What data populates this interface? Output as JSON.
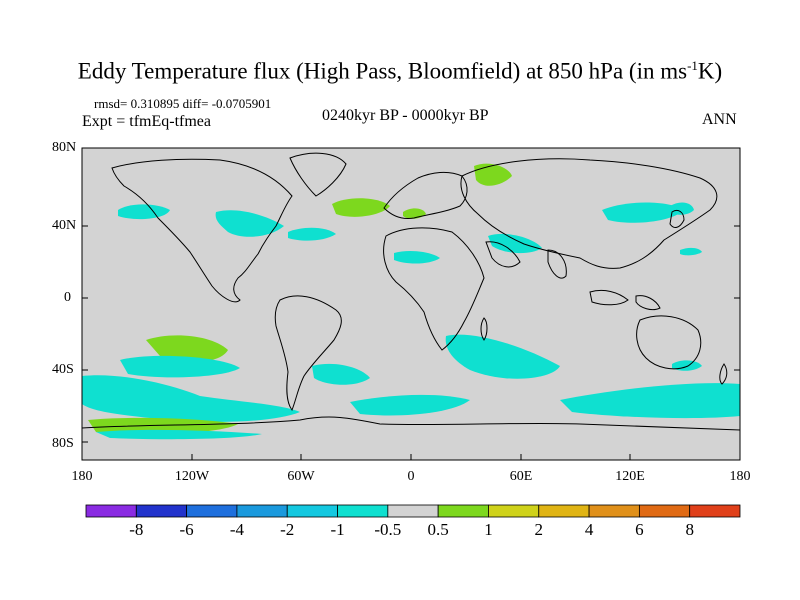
{
  "title": {
    "main": "Eddy Temperature flux (High Pass, Bloomfield) at 850 hPa (in ms",
    "sup": "-1",
    "end": "K)"
  },
  "stats_line": "rmsd= 0.310895 diff= -0.0705901",
  "experiment": "Expt = tfmEq-tfmea",
  "period": "0240kyr BP - 0000kyr BP",
  "season": "ANN",
  "map": {
    "background_color": "#d3d3d3",
    "lat_labels": [
      "80N",
      "40N",
      "0",
      "40S",
      "80S"
    ],
    "lon_labels": [
      "180",
      "120W",
      "60W",
      "0",
      "60E",
      "120E",
      "180"
    ]
  },
  "colorbar": {
    "colors": [
      "#8a2be2",
      "#2233cc",
      "#1e6fdd",
      "#1a99dd",
      "#14c8e0",
      "#0fe0d0",
      "#d3d3d3",
      "#7dd81e",
      "#cfd21a",
      "#e0b414",
      "#e0901a",
      "#e06a14",
      "#e0401a"
    ],
    "labels": [
      "-8",
      "-6",
      "-4",
      "-2",
      "-1",
      "-0.5",
      "0.5",
      "1",
      "2",
      "4",
      "6",
      "8"
    ]
  },
  "regions": [
    {
      "name": "n-pacific-east",
      "sign": "negative"
    },
    {
      "name": "north-america-east",
      "sign": "negative"
    },
    {
      "name": "n-atlantic-west",
      "sign": "negative"
    },
    {
      "name": "n-atlantic",
      "sign": "positive"
    },
    {
      "name": "mediterranean",
      "sign": "positive"
    },
    {
      "name": "barents",
      "sign": "positive"
    },
    {
      "name": "west-asia",
      "sign": "negative"
    },
    {
      "name": "sahara",
      "sign": "negative"
    },
    {
      "name": "east-asia",
      "sign": "negative"
    },
    {
      "name": "japan",
      "sign": "negative"
    },
    {
      "name": "nw-pacific",
      "sign": "negative"
    },
    {
      "name": "s-pacific-green",
      "sign": "positive"
    },
    {
      "name": "s-pacific-cyan",
      "sign": "negative"
    },
    {
      "name": "south-atlantic",
      "sign": "negative"
    },
    {
      "name": "southern-ocean-indian",
      "sign": "negative"
    },
    {
      "name": "southern-ocean-pacific",
      "sign": "negative"
    },
    {
      "name": "southern-ocean-east",
      "sign": "negative"
    },
    {
      "name": "ross-sea",
      "sign": "positive"
    },
    {
      "name": "weddell",
      "sign": "negative"
    }
  ]
}
